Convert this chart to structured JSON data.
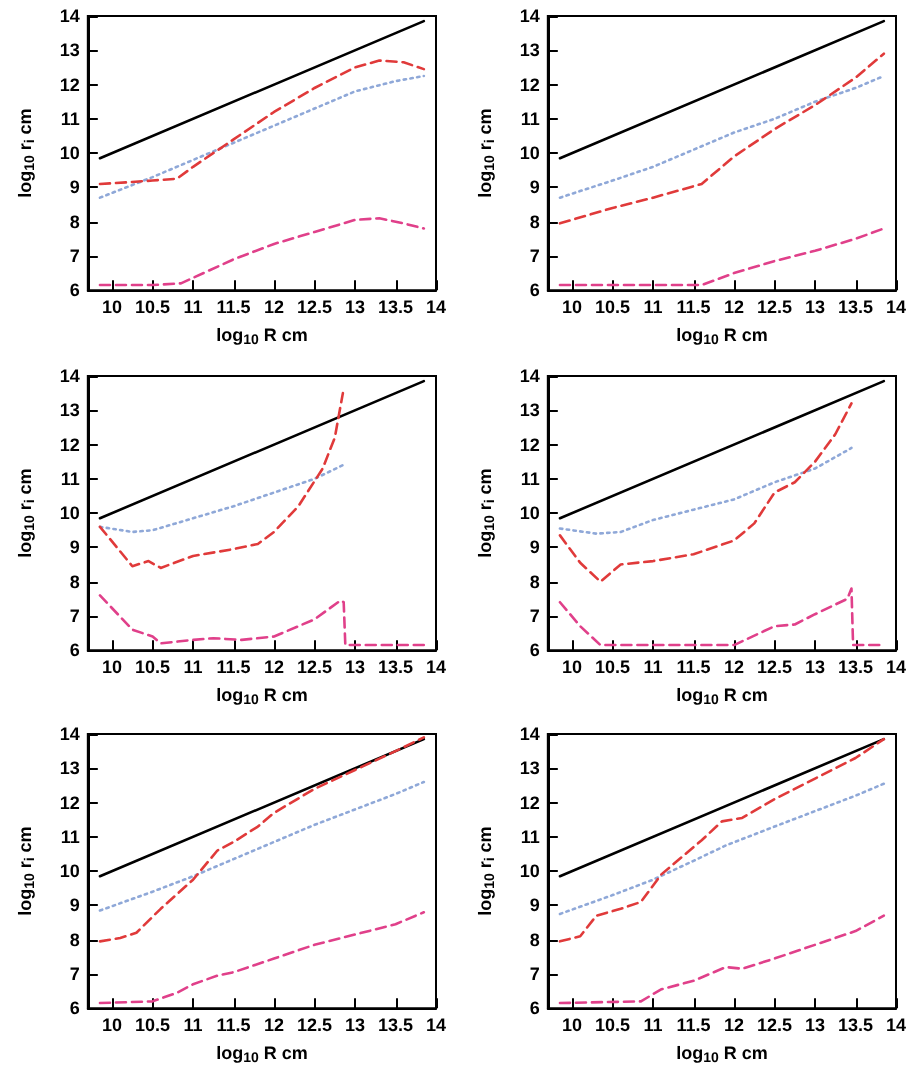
{
  "chart_data": [
    {
      "type": "line",
      "xlabel": "log$_{10}$ R cm",
      "ylabel": "log$_{10}$ r$_{i}$ cm",
      "xlim": [
        9.7,
        14
      ],
      "ylim": [
        6,
        14
      ],
      "xticks": [
        10,
        10.5,
        11,
        11.5,
        12,
        12.5,
        13,
        13.5,
        14
      ],
      "yticks": [
        6,
        7,
        8,
        9,
        10,
        11,
        12,
        13,
        14
      ],
      "grid": false,
      "marker": "none",
      "series": [
        {
          "color": "#000000",
          "line_style": "solid",
          "x": [
            9.85,
            13.85
          ],
          "values": [
            9.85,
            13.85
          ]
        },
        {
          "color": "#8fa8d8",
          "line_style": "dotted",
          "x": [
            9.85,
            10.5,
            11,
            11.5,
            12,
            12.5,
            13,
            13.5,
            13.85
          ],
          "values": [
            8.7,
            9.3,
            9.8,
            10.3,
            10.8,
            11.3,
            11.8,
            12.1,
            12.25
          ]
        },
        {
          "color": "#e03a3a",
          "line_style": "dashed",
          "x": [
            9.85,
            10.2,
            10.5,
            10.8,
            11,
            11.5,
            12,
            12.5,
            13,
            13.3,
            13.6,
            13.85
          ],
          "values": [
            9.1,
            9.15,
            9.2,
            9.25,
            9.6,
            10.4,
            11.2,
            11.9,
            12.5,
            12.7,
            12.65,
            12.45
          ]
        },
        {
          "color": "#e0408a",
          "line_style": "dashed",
          "x": [
            9.85,
            10.5,
            10.85,
            11.5,
            12,
            12.5,
            13,
            13.3,
            13.6,
            13.85
          ],
          "values": [
            6.15,
            6.15,
            6.2,
            6.9,
            7.35,
            7.7,
            8.05,
            8.1,
            7.95,
            7.8
          ]
        }
      ]
    },
    {
      "type": "line",
      "xlabel": "log$_{10}$ R cm",
      "ylabel": "log$_{10}$ r$_{i}$ cm",
      "xlim": [
        9.7,
        14
      ],
      "ylim": [
        6,
        14
      ],
      "xticks": [
        10,
        10.5,
        11,
        11.5,
        12,
        12.5,
        13,
        13.5,
        14
      ],
      "yticks": [
        6,
        7,
        8,
        9,
        10,
        11,
        12,
        13,
        14
      ],
      "grid": false,
      "marker": "none",
      "series": [
        {
          "color": "#000000",
          "line_style": "solid",
          "x": [
            9.85,
            13.85
          ],
          "values": [
            9.85,
            13.85
          ]
        },
        {
          "color": "#8fa8d8",
          "line_style": "dotted",
          "x": [
            9.85,
            10.5,
            11,
            11.5,
            12,
            12.5,
            13,
            13.5,
            13.85
          ],
          "values": [
            8.7,
            9.2,
            9.6,
            10.1,
            10.6,
            11.0,
            11.5,
            11.9,
            12.25
          ]
        },
        {
          "color": "#e03a3a",
          "line_style": "dashed",
          "x": [
            9.85,
            10.5,
            11,
            11.6,
            12,
            12.5,
            13,
            13.5,
            13.85
          ],
          "values": [
            7.95,
            8.4,
            8.7,
            9.1,
            9.9,
            10.7,
            11.4,
            12.2,
            12.9
          ]
        },
        {
          "color": "#e0408a",
          "line_style": "dashed",
          "x": [
            9.85,
            11.6,
            12,
            12.5,
            13,
            13.5,
            13.85
          ],
          "values": [
            6.15,
            6.15,
            6.5,
            6.85,
            7.15,
            7.5,
            7.8
          ]
        }
      ]
    },
    {
      "type": "line",
      "xlabel": "log$_{10}$ R cm",
      "ylabel": "log$_{10}$ r$_{i}$ cm",
      "xlim": [
        9.7,
        14
      ],
      "ylim": [
        6,
        14
      ],
      "xticks": [
        10,
        10.5,
        11,
        11.5,
        12,
        12.5,
        13,
        13.5,
        14
      ],
      "yticks": [
        6,
        7,
        8,
        9,
        10,
        11,
        12,
        13,
        14
      ],
      "grid": false,
      "marker": "none",
      "series": [
        {
          "color": "#000000",
          "line_style": "solid",
          "x": [
            9.85,
            13.85
          ],
          "values": [
            9.85,
            13.85
          ]
        },
        {
          "color": "#8fa8d8",
          "line_style": "dotted",
          "x": [
            9.85,
            10.25,
            10.5,
            11,
            11.5,
            12,
            12.5,
            12.85
          ],
          "values": [
            9.6,
            9.45,
            9.5,
            9.85,
            10.2,
            10.6,
            11.0,
            11.4
          ]
        },
        {
          "color": "#e03a3a",
          "line_style": "dashed",
          "x": [
            9.85,
            10.25,
            10.45,
            10.6,
            11,
            11.5,
            11.8,
            12,
            12.3,
            12.6,
            12.75,
            12.85
          ],
          "values": [
            9.6,
            8.45,
            8.6,
            8.4,
            8.75,
            8.95,
            9.1,
            9.45,
            10.2,
            11.3,
            12.2,
            13.5
          ]
        },
        {
          "color": "#e0408a",
          "line_style": "dashed",
          "x": [
            9.85,
            10.25,
            10.5,
            10.6,
            11,
            11.25,
            11.6,
            12,
            12.5,
            12.82,
            12.86,
            12.88,
            13.85
          ],
          "values": [
            7.6,
            6.6,
            6.4,
            6.2,
            6.3,
            6.35,
            6.3,
            6.4,
            6.9,
            7.45,
            7.4,
            6.15,
            6.15
          ]
        }
      ]
    },
    {
      "type": "line",
      "xlabel": "log$_{10}$ R cm",
      "ylabel": "log$_{10}$ r$_{i}$ cm",
      "xlim": [
        9.7,
        14
      ],
      "ylim": [
        6,
        14
      ],
      "xticks": [
        10,
        10.5,
        11,
        11.5,
        12,
        12.5,
        13,
        13.5,
        14
      ],
      "yticks": [
        6,
        7,
        8,
        9,
        10,
        11,
        12,
        13,
        14
      ],
      "grid": false,
      "marker": "none",
      "series": [
        {
          "color": "#000000",
          "line_style": "solid",
          "x": [
            9.85,
            13.85
          ],
          "values": [
            9.85,
            13.85
          ]
        },
        {
          "color": "#8fa8d8",
          "line_style": "dotted",
          "x": [
            9.85,
            10.3,
            10.6,
            11,
            11.5,
            12,
            12.5,
            13,
            13.45
          ],
          "values": [
            9.55,
            9.4,
            9.45,
            9.8,
            10.1,
            10.4,
            10.9,
            11.3,
            11.9
          ]
        },
        {
          "color": "#e03a3a",
          "line_style": "dashed",
          "x": [
            9.85,
            10.1,
            10.35,
            10.6,
            11,
            11.5,
            12,
            12.25,
            12.5,
            12.75,
            13,
            13.25,
            13.45
          ],
          "values": [
            9.35,
            8.55,
            8.0,
            8.5,
            8.6,
            8.8,
            9.2,
            9.7,
            10.6,
            10.9,
            11.5,
            12.3,
            13.2
          ]
        },
        {
          "color": "#e0408a",
          "line_style": "dashed",
          "x": [
            9.85,
            10.1,
            10.35,
            12,
            12.5,
            12.75,
            13,
            13.4,
            13.45,
            13.47,
            13.85
          ],
          "values": [
            7.4,
            6.7,
            6.15,
            6.15,
            6.7,
            6.75,
            7.05,
            7.5,
            7.8,
            6.15,
            6.15
          ]
        }
      ]
    },
    {
      "type": "line",
      "xlabel": "log$_{10}$ R cm",
      "ylabel": "log$_{10}$ r$_{i}$ cm",
      "xlim": [
        9.7,
        14
      ],
      "ylim": [
        6,
        14
      ],
      "xticks": [
        10,
        10.5,
        11,
        11.5,
        12,
        12.5,
        13,
        13.5,
        14
      ],
      "yticks": [
        6,
        7,
        8,
        9,
        10,
        11,
        12,
        13,
        14
      ],
      "grid": false,
      "marker": "none",
      "series": [
        {
          "color": "#000000",
          "line_style": "solid",
          "x": [
            9.85,
            13.85
          ],
          "values": [
            9.85,
            13.85
          ]
        },
        {
          "color": "#8fa8d8",
          "line_style": "dotted",
          "x": [
            9.85,
            10.5,
            11,
            11.5,
            12,
            12.5,
            13,
            13.5,
            13.85
          ],
          "values": [
            8.85,
            9.4,
            9.85,
            10.35,
            10.85,
            11.35,
            11.8,
            12.25,
            12.6
          ]
        },
        {
          "color": "#e03a3a",
          "line_style": "dashed",
          "x": [
            9.85,
            10.1,
            10.3,
            10.6,
            11,
            11.3,
            11.5,
            11.8,
            12,
            12.5,
            13,
            13.5,
            13.85
          ],
          "values": [
            7.95,
            8.05,
            8.2,
            8.9,
            9.75,
            10.6,
            10.85,
            11.3,
            11.7,
            12.4,
            12.95,
            13.5,
            13.9
          ]
        },
        {
          "color": "#e0408a",
          "line_style": "dashed",
          "x": [
            9.85,
            10.5,
            10.8,
            11,
            11.3,
            11.5,
            12,
            12.5,
            13,
            13.5,
            13.85
          ],
          "values": [
            6.15,
            6.2,
            6.45,
            6.7,
            6.95,
            7.05,
            7.45,
            7.85,
            8.15,
            8.45,
            8.8
          ]
        }
      ]
    },
    {
      "type": "line",
      "xlabel": "log$_{10}$ R cm",
      "ylabel": "log$_{10}$ r$_{i}$ cm",
      "xlim": [
        9.7,
        14
      ],
      "ylim": [
        6,
        14
      ],
      "xticks": [
        10,
        10.5,
        11,
        11.5,
        12,
        12.5,
        13,
        13.5,
        14
      ],
      "yticks": [
        6,
        7,
        8,
        9,
        10,
        11,
        12,
        13,
        14
      ],
      "grid": false,
      "marker": "none",
      "series": [
        {
          "color": "#000000",
          "line_style": "solid",
          "x": [
            9.85,
            13.85
          ],
          "values": [
            9.85,
            13.85
          ]
        },
        {
          "color": "#8fa8d8",
          "line_style": "dotted",
          "x": [
            9.85,
            10.5,
            11,
            11.5,
            11.9,
            12.5,
            13,
            13.5,
            13.85
          ],
          "values": [
            8.75,
            9.3,
            9.75,
            10.3,
            10.75,
            11.3,
            11.75,
            12.2,
            12.55
          ]
        },
        {
          "color": "#e03a3a",
          "line_style": "dashed",
          "x": [
            9.85,
            10.1,
            10.3,
            10.6,
            10.85,
            11.1,
            11.4,
            11.6,
            11.85,
            12.1,
            12.5,
            13,
            13.5,
            13.85
          ],
          "values": [
            7.95,
            8.1,
            8.7,
            8.9,
            9.1,
            9.9,
            10.5,
            10.9,
            11.45,
            11.55,
            12.1,
            12.7,
            13.3,
            13.85
          ]
        },
        {
          "color": "#e0408a",
          "line_style": "dashed",
          "x": [
            9.85,
            10.85,
            11.1,
            11.5,
            11.9,
            12.1,
            12.5,
            13,
            13.5,
            13.85
          ],
          "values": [
            6.15,
            6.2,
            6.55,
            6.8,
            7.2,
            7.15,
            7.45,
            7.85,
            8.25,
            8.7
          ]
        }
      ]
    }
  ]
}
